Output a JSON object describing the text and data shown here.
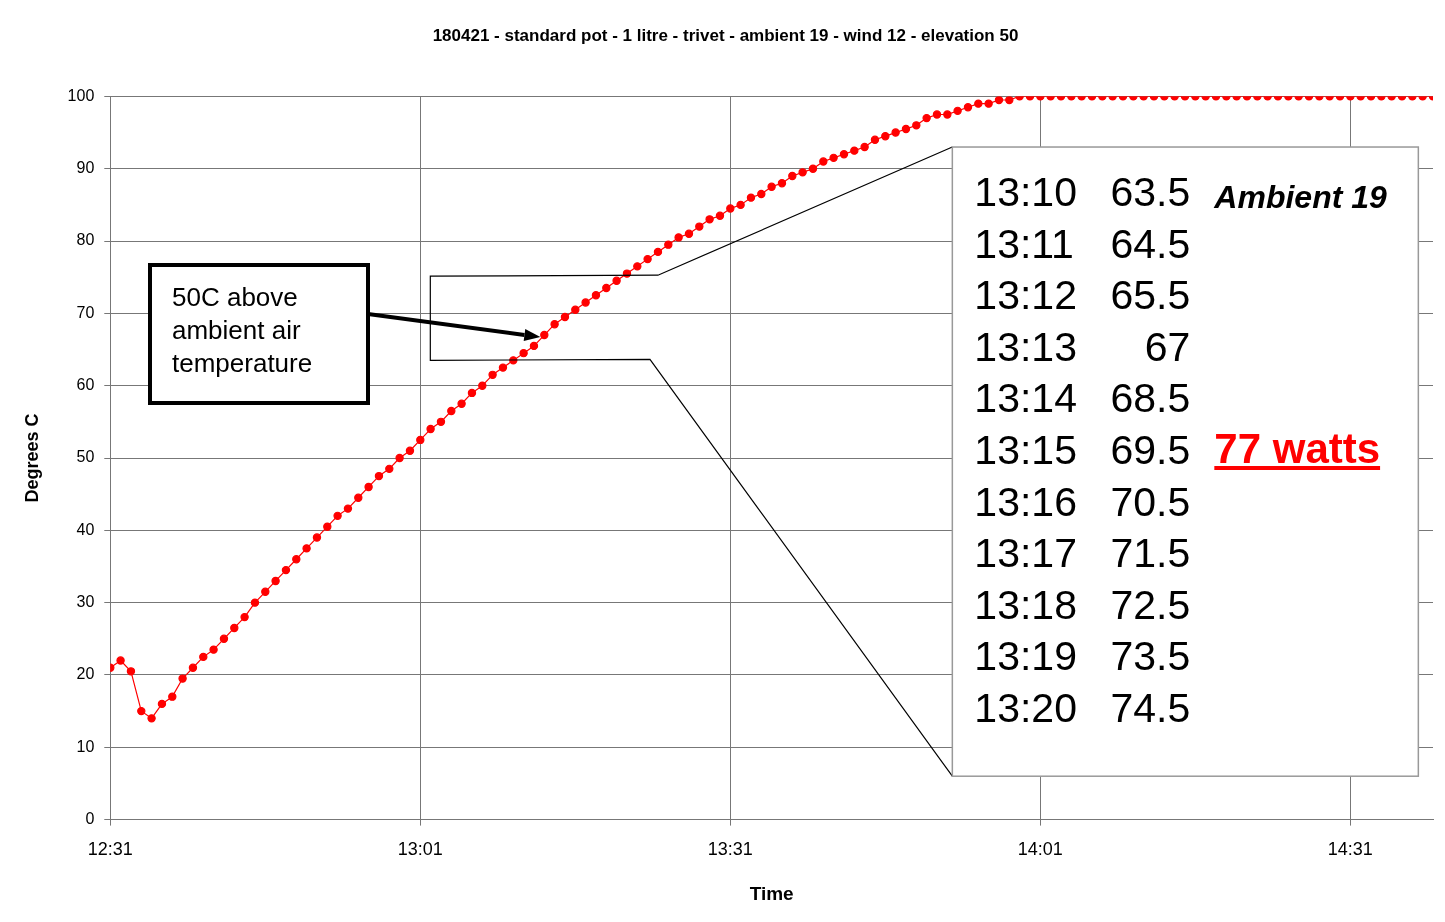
{
  "chart_data": {
    "type": "line",
    "title": "180421 - standard pot - 1 litre - trivet - ambient 19 - wind 12 - elevation 50",
    "xlabel": "Time",
    "ylabel": "Degrees C",
    "xlim": [
      12.5167,
      14.65
    ],
    "xticks": [
      {
        "value": 12.5167,
        "label": "12:31"
      },
      {
        "value": 13.0167,
        "label": "13:01"
      },
      {
        "value": 13.5167,
        "label": "13:31"
      },
      {
        "value": 14.0167,
        "label": "14:01"
      },
      {
        "value": 14.5167,
        "label": "14:31"
      }
    ],
    "ylim": [
      0,
      100
    ],
    "yticks": [
      0,
      10,
      20,
      30,
      40,
      50,
      60,
      70,
      80,
      90,
      100
    ],
    "grid": true,
    "marker": "circle",
    "line_style": "solid",
    "annotations": [
      "50C above ambient air temperature",
      "13:10 63.5",
      "13:11 64.5",
      "13:12 65.5",
      "13:13 67",
      "13:14 68.5",
      "13:15 69.5",
      "13:16 70.5",
      "13:17 71.5",
      "13:18 72.5",
      "13:19 73.5",
      "13:20 74.5",
      "Ambient 19",
      "77 watts"
    ],
    "series": [
      {
        "color": "#ff0000",
        "x": [
          12.5167,
          12.5333,
          12.55,
          12.5667,
          12.5833,
          12.6,
          12.6167,
          12.6333,
          12.65,
          12.6667,
          12.6833,
          12.7,
          12.7167,
          12.7333,
          12.75,
          12.7667,
          12.7833,
          12.8,
          12.8167,
          12.8333,
          12.85,
          12.8667,
          12.8833,
          12.9,
          12.9167,
          12.9333,
          12.95,
          12.9667,
          12.9833,
          13.0,
          13.0167,
          13.0333,
          13.05,
          13.0667,
          13.0833,
          13.1,
          13.1167,
          13.1333,
          13.15,
          13.1667,
          13.1833,
          13.2,
          13.2167,
          13.2333,
          13.25,
          13.2667,
          13.2833,
          13.3,
          13.3167,
          13.3333,
          13.35,
          13.3667,
          13.3833,
          13.4,
          13.4167,
          13.4333,
          13.45,
          13.4667,
          13.4833,
          13.5,
          13.5167,
          13.5333,
          13.55,
          13.5667,
          13.5833,
          13.6,
          13.6167,
          13.6333,
          13.65,
          13.6667,
          13.6833,
          13.7,
          13.7167,
          13.7333,
          13.75,
          13.7667,
          13.7833,
          13.8,
          13.8167,
          13.8333,
          13.85,
          13.8667,
          13.8833,
          13.9,
          13.9167,
          13.9333,
          13.95,
          13.9667,
          13.9833,
          14.0,
          14.0167,
          14.0333,
          14.05,
          14.0667,
          14.0833,
          14.1,
          14.1167,
          14.1333,
          14.15,
          14.1667,
          14.1833,
          14.2,
          14.2167,
          14.2333,
          14.25,
          14.2667,
          14.2833,
          14.3,
          14.3167,
          14.3333,
          14.35,
          14.3667,
          14.3833,
          14.4,
          14.4167,
          14.4333,
          14.45,
          14.4667,
          14.4833,
          14.5,
          14.5167,
          14.5333,
          14.55,
          14.5667,
          14.5833,
          14.6,
          14.6167,
          14.6333,
          14.65
        ],
        "values": [
          21,
          22,
          20.5,
          15,
          14,
          16,
          17,
          19.5,
          21,
          22.5,
          23.5,
          25,
          26.5,
          28,
          30,
          31.5,
          33,
          34.5,
          36,
          37.5,
          39,
          40.5,
          42,
          43,
          44.5,
          46,
          47.5,
          48.5,
          50,
          51,
          52.5,
          54,
          55,
          56.5,
          57.5,
          59,
          60,
          61.5,
          62.5,
          63.5,
          64.5,
          65.5,
          67,
          68.5,
          69.5,
          70.5,
          71.5,
          72.5,
          73.5,
          74.5,
          75.5,
          76.5,
          77.5,
          78.5,
          79.5,
          80.5,
          81,
          82,
          83,
          83.5,
          84.5,
          85,
          86,
          86.5,
          87.5,
          88,
          89,
          89.5,
          90,
          91,
          91.5,
          92,
          92.5,
          93,
          94,
          94.5,
          95,
          95.5,
          96,
          97,
          97.5,
          97.5,
          98,
          98.5,
          99,
          99,
          99.5,
          99.5,
          100,
          100,
          100,
          100,
          100,
          100,
          100,
          100,
          100,
          100,
          100,
          100,
          100,
          100,
          100,
          100,
          100,
          100,
          100,
          100,
          100,
          100,
          100,
          100,
          100,
          100,
          100,
          100,
          100,
          100,
          100,
          100,
          100,
          100,
          100,
          100,
          100,
          100,
          100,
          100,
          100
        ]
      }
    ]
  }
}
